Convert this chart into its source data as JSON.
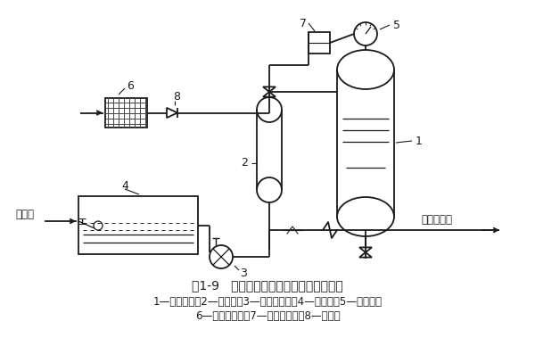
{
  "title": "图1-9   自动补气式气压罐给水工作原理图",
  "caption_line1": "1—气压水罐；2—补气罐；3—补水稳压泵；4—贮水池；5—压力表；",
  "caption_line2": "6—空气过滤器；7—压力控制器；8—逆止阀",
  "bg_color": "#ffffff",
  "line_color": "#1a1a1a",
  "font_size_title": 10,
  "font_size_caption": 8.5
}
